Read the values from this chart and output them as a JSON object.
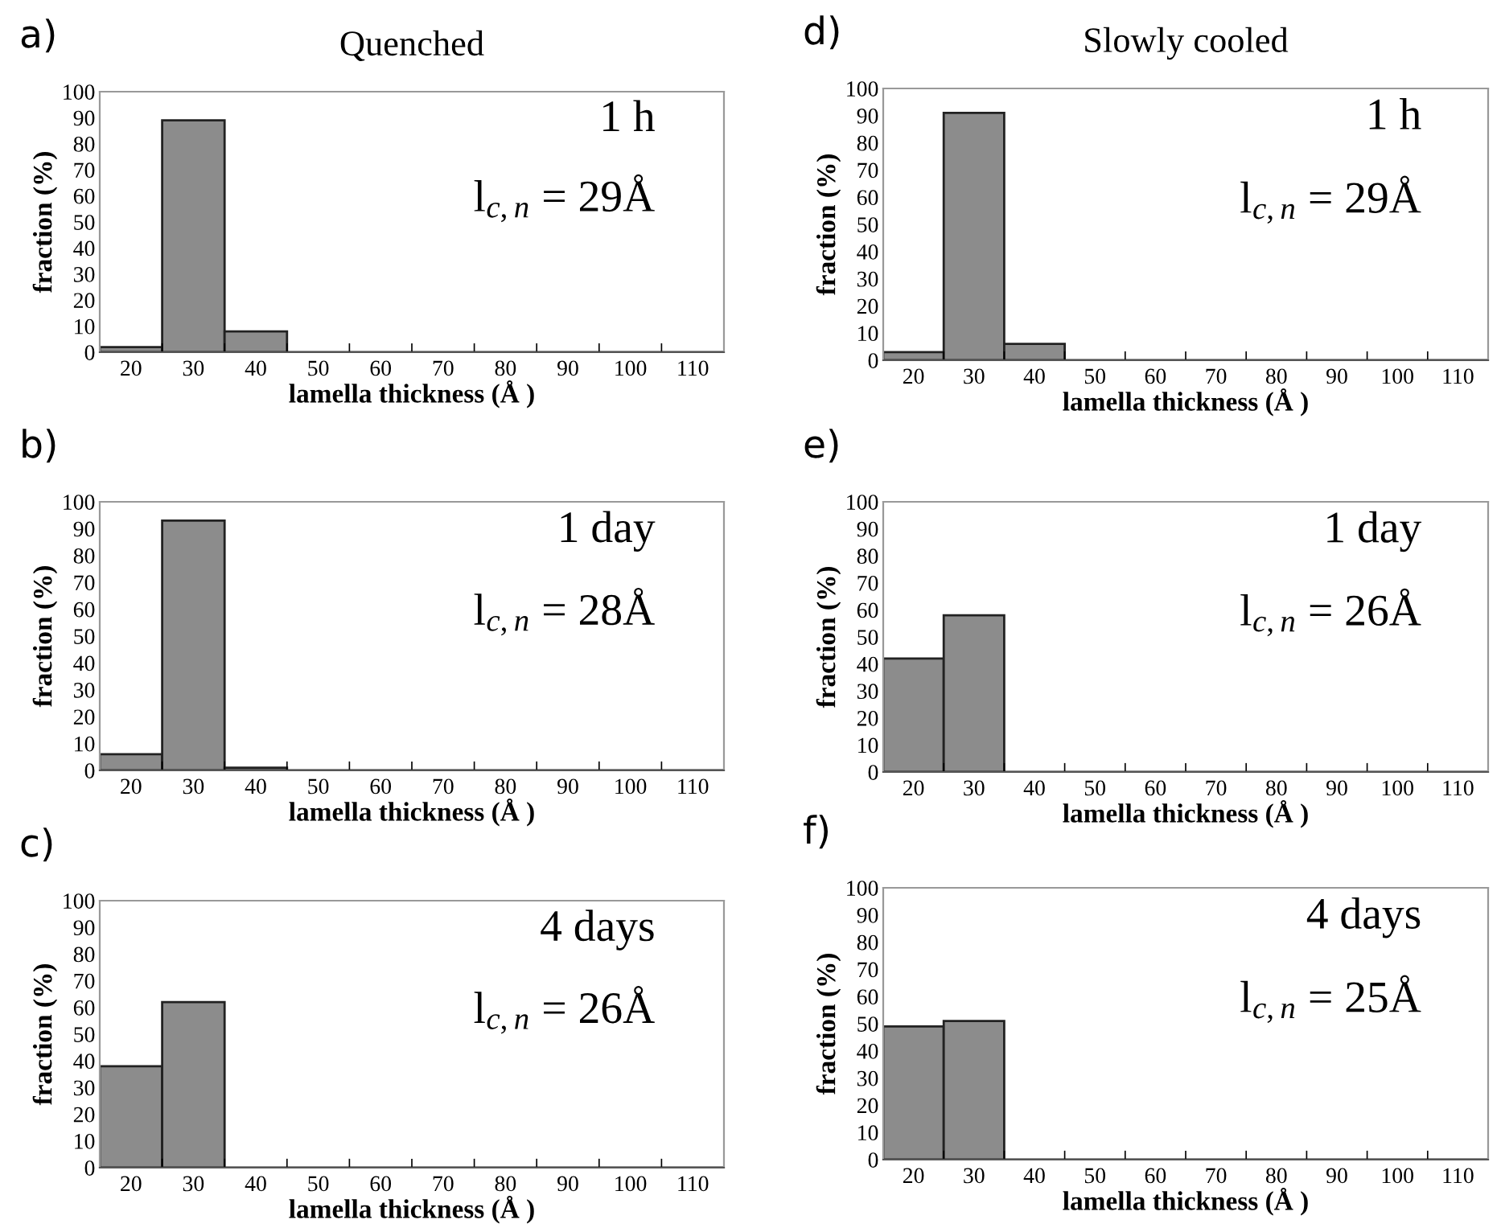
{
  "chart_data": [
    {
      "type": "histogram",
      "title": "Quenched",
      "xlabel": "lamella thickness (Å )",
      "ylabel": "fraction (%)",
      "annotations": [
        "a)",
        "1 h",
        "l$_{c,}$$_{n}$ = 29Å"
      ],
      "bins": [
        15,
        25,
        35,
        45,
        55,
        65,
        75,
        85,
        95,
        105,
        115
      ],
      "values": [
        2,
        89,
        8,
        0,
        0,
        0,
        0,
        0,
        0,
        0
      ],
      "color": "#8c8c8c",
      "xlim": [
        15,
        115
      ],
      "xticks": [
        20,
        30,
        40,
        50,
        60,
        70,
        80,
        90,
        100,
        110
      ],
      "ylim": [
        0,
        100
      ],
      "yticks": [
        0,
        10,
        20,
        30,
        40,
        50,
        60,
        70,
        80,
        90,
        100
      ],
      "grid": false,
      "legend": false
    },
    {
      "type": "histogram",
      "title": "Slowly cooled",
      "xlabel": "lamella thickness (Å )",
      "ylabel": "fraction (%)",
      "annotations": [
        "d)",
        "1 h",
        "l$_{c,}$$_{n}$ = 29Å"
      ],
      "bins": [
        15,
        25,
        35,
        45,
        55,
        65,
        75,
        85,
        95,
        105,
        115
      ],
      "values": [
        3,
        91,
        6,
        0,
        0,
        0,
        0,
        0,
        0,
        0
      ],
      "color": "#8c8c8c",
      "xlim": [
        15,
        115
      ],
      "xticks": [
        20,
        30,
        40,
        50,
        60,
        70,
        80,
        90,
        100,
        110
      ],
      "ylim": [
        0,
        100
      ],
      "yticks": [
        0,
        10,
        20,
        30,
        40,
        50,
        60,
        70,
        80,
        90,
        100
      ],
      "grid": false,
      "legend": false
    },
    {
      "type": "histogram",
      "xlabel": "lamella thickness (Å )",
      "ylabel": "fraction (%)",
      "annotations": [
        "b)",
        "1 day",
        "l$_{c,}$$_{n}$ = 28Å"
      ],
      "bins": [
        15,
        25,
        35,
        45,
        55,
        65,
        75,
        85,
        95,
        105,
        115
      ],
      "values": [
        6,
        93,
        1,
        0,
        0,
        0,
        0,
        0,
        0,
        0
      ],
      "color": "#8c8c8c",
      "xlim": [
        15,
        115
      ],
      "xticks": [
        20,
        30,
        40,
        50,
        60,
        70,
        80,
        90,
        100,
        110
      ],
      "ylim": [
        0,
        100
      ],
      "yticks": [
        0,
        10,
        20,
        30,
        40,
        50,
        60,
        70,
        80,
        90,
        100
      ],
      "grid": false,
      "legend": false
    },
    {
      "type": "histogram",
      "xlabel": "lamella thickness (Å )",
      "ylabel": "fraction (%)",
      "annotations": [
        "e)",
        "1 day",
        "l$_{c,}$$_{n}$ = 26Å"
      ],
      "bins": [
        15,
        25,
        35,
        45,
        55,
        65,
        75,
        85,
        95,
        105,
        115
      ],
      "values": [
        42,
        58,
        0,
        0,
        0,
        0,
        0,
        0,
        0,
        0
      ],
      "color": "#8c8c8c",
      "xlim": [
        15,
        115
      ],
      "xticks": [
        20,
        30,
        40,
        50,
        60,
        70,
        80,
        90,
        100,
        110
      ],
      "ylim": [
        0,
        100
      ],
      "yticks": [
        0,
        10,
        20,
        30,
        40,
        50,
        60,
        70,
        80,
        90,
        100
      ],
      "grid": false,
      "legend": false
    },
    {
      "type": "histogram",
      "xlabel": "lamella thickness (Å )",
      "ylabel": "fraction (%)",
      "annotations": [
        "c)",
        "4 days",
        "l$_{c,}$$_{n}$ = 26Å"
      ],
      "bins": [
        15,
        25,
        35,
        45,
        55,
        65,
        75,
        85,
        95,
        105,
        115
      ],
      "values": [
        38,
        62,
        0,
        0,
        0,
        0,
        0,
        0,
        0,
        0
      ],
      "color": "#8c8c8c",
      "xlim": [
        15,
        115
      ],
      "xticks": [
        20,
        30,
        40,
        50,
        60,
        70,
        80,
        90,
        100,
        110
      ],
      "ylim": [
        0,
        100
      ],
      "yticks": [
        0,
        10,
        20,
        30,
        40,
        50,
        60,
        70,
        80,
        90,
        100
      ],
      "grid": false,
      "legend": false
    },
    {
      "type": "histogram",
      "xlabel": "lamella thickness (Å )",
      "ylabel": "fraction (%)",
      "annotations": [
        "f)",
        "4 days",
        "l$_{c,}$$_{n}$ = 25Å"
      ],
      "bins": [
        15,
        25,
        35,
        45,
        55,
        65,
        75,
        85,
        95,
        105,
        115
      ],
      "values": [
        49,
        51,
        0,
        0,
        0,
        0,
        0,
        0,
        0,
        0
      ],
      "color": "#8c8c8c",
      "xlim": [
        15,
        115
      ],
      "xticks": [
        20,
        30,
        40,
        50,
        60,
        70,
        80,
        90,
        100,
        110
      ],
      "ylim": [
        0,
        100
      ],
      "yticks": [
        0,
        10,
        20,
        30,
        40,
        50,
        60,
        70,
        80,
        90,
        100
      ],
      "grid": false,
      "legend": false
    }
  ]
}
